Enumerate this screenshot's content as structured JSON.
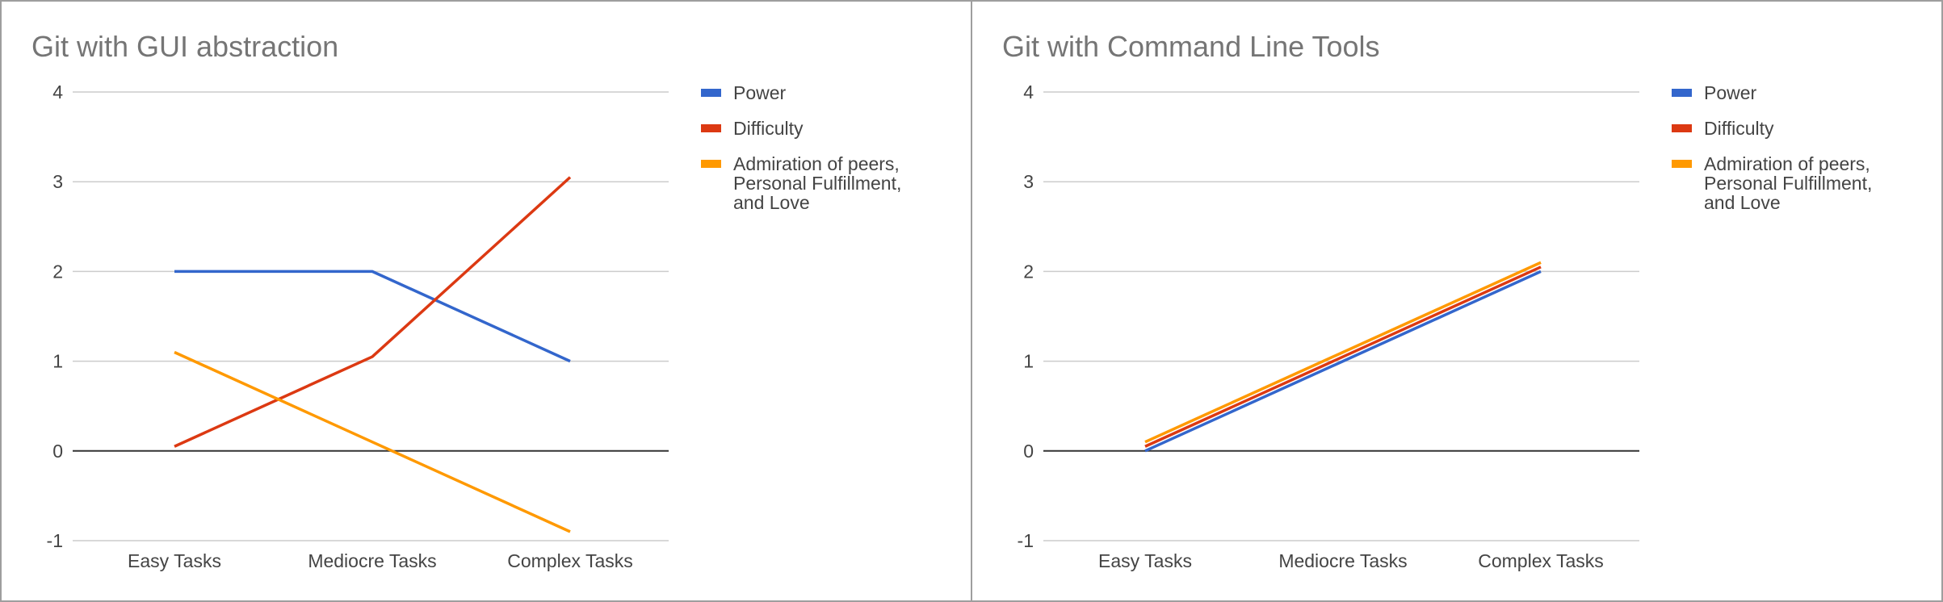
{
  "chart_data": [
    {
      "type": "line",
      "title": "Git with GUI abstraction",
      "categories": [
        "Easy Tasks",
        "Mediocre Tasks",
        "Complex Tasks"
      ],
      "ylim": [
        -1,
        4
      ],
      "yticks": [
        -1,
        0,
        1,
        2,
        3,
        4
      ],
      "grid": true,
      "legend_position": "right",
      "series": [
        {
          "name": "Power",
          "values": [
            2,
            2,
            1
          ],
          "color": "#3366cc"
        },
        {
          "name": "Difficulty",
          "values": [
            0.05,
            1.05,
            3.05
          ],
          "color": "#dc3912"
        },
        {
          "name": "Admiration of peers, Personal Fulfillment, and Love",
          "values": [
            1.1,
            0.1,
            -0.9
          ],
          "color": "#ff9900"
        }
      ]
    },
    {
      "type": "line",
      "title": "Git with Command Line Tools",
      "categories": [
        "Easy Tasks",
        "Mediocre Tasks",
        "Complex Tasks"
      ],
      "ylim": [
        -1,
        4
      ],
      "yticks": [
        -1,
        0,
        1,
        2,
        3,
        4
      ],
      "grid": true,
      "legend_position": "right",
      "series": [
        {
          "name": "Power",
          "values": [
            0,
            1,
            2
          ],
          "color": "#3366cc"
        },
        {
          "name": "Difficulty",
          "values": [
            0.05,
            1.05,
            2.05
          ],
          "color": "#dc3912"
        },
        {
          "name": "Admiration of peers, Personal Fulfillment, and Love",
          "values": [
            0.1,
            1.1,
            2.1
          ],
          "color": "#ff9900"
        }
      ]
    }
  ],
  "legend_display": [
    [
      "Power"
    ],
    [
      "Difficulty"
    ],
    [
      "Admiration of peers,",
      "Personal Fulfillment,",
      "and Love"
    ]
  ]
}
